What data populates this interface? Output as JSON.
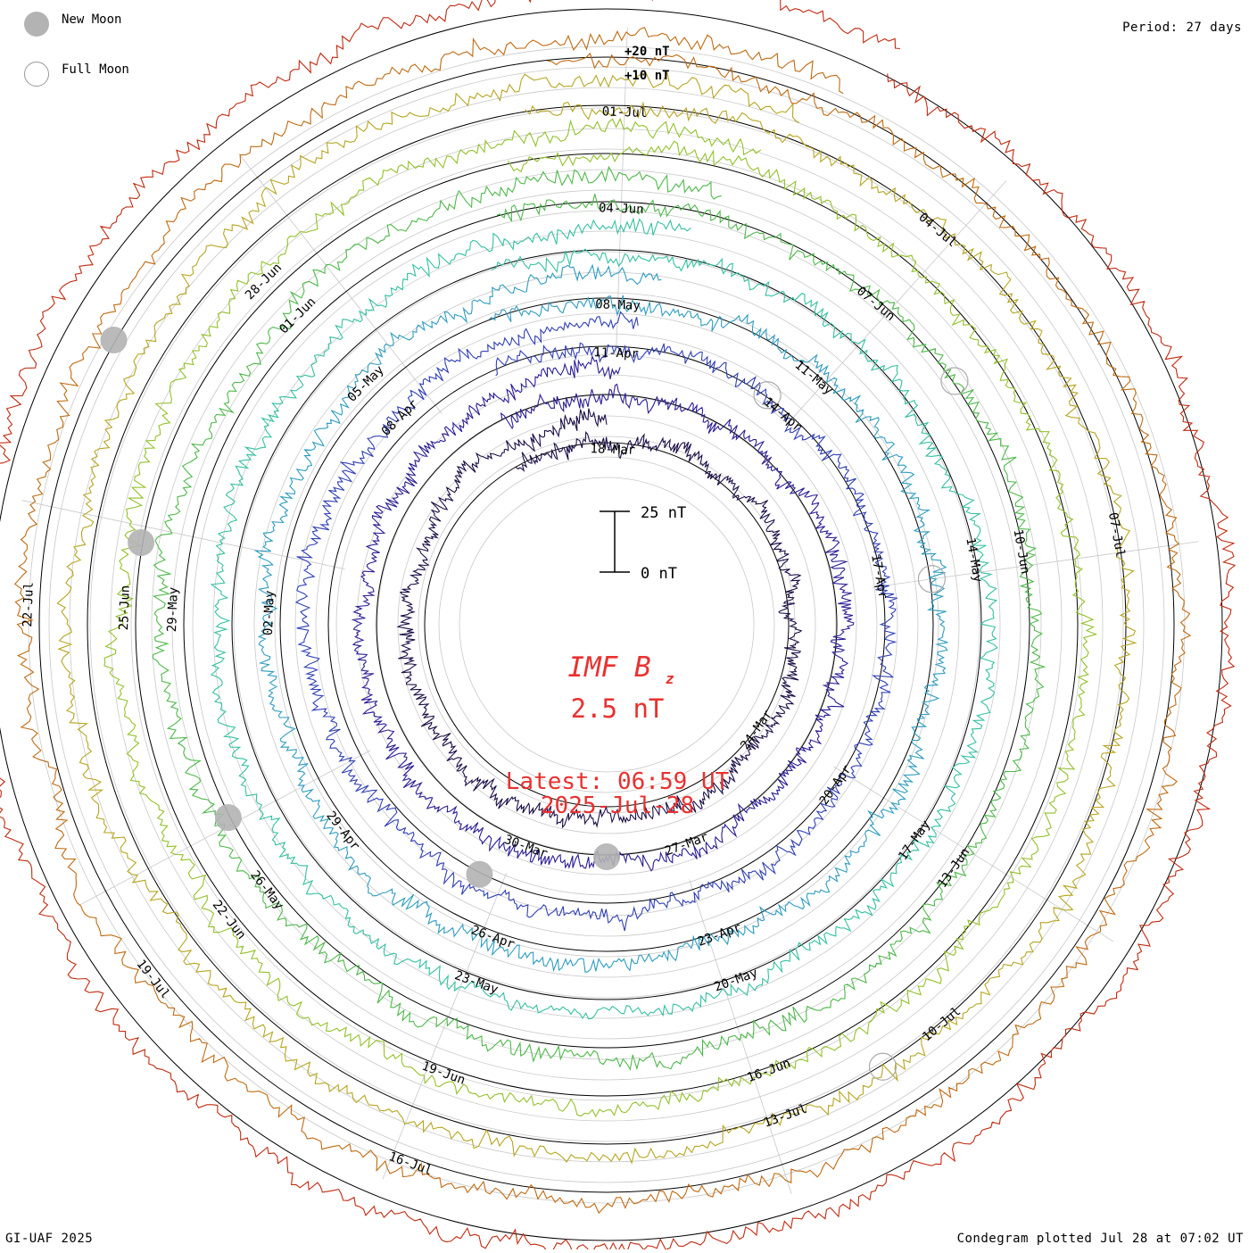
{
  "legend": {
    "new_moon": "New Moon",
    "full_moon": "Full Moon"
  },
  "period_label": "Period: 27 days",
  "footer_left": "GI-UAF 2025",
  "footer_right": "Condegram plotted Jul 28 at 07:02 UT",
  "colors": {
    "text_red": "#e8312f",
    "grid": "#c8c8c8",
    "moon_gray": "#b3b3b3",
    "tracks": [
      "#1c0e46",
      "#2b1d95",
      "#3040b5",
      "#2e9cc0",
      "#34c0a2",
      "#4eb84a",
      "#93c12a",
      "#b7a520",
      "#c06a10",
      "#c12a10"
    ]
  },
  "center": {
    "title_main": "IMF B",
    "title_sub": "z",
    "value": "2.5 nT",
    "latest": "Latest: 06:59 UT",
    "date": "2025-Jul-28"
  },
  "chart_data": {
    "type": "condegram",
    "title": "IMF Bz",
    "period_days": 27,
    "units": "nT",
    "latest_value_nT": 2.5,
    "latest_time": "06:59 UT",
    "latest_date": "2025-Jul-28",
    "scale_bar": {
      "top_label": "25 nT",
      "bottom_label": "0 nT",
      "top_value": 25,
      "bottom_value": 0
    },
    "reference_ring_labels": [
      "+20 nT",
      "+10 nT"
    ],
    "rotations": [
      {
        "index": 0,
        "color": "#1c0e46",
        "date_labels": [
          "18-Mar",
          "24-Mar",
          "27-Mar",
          "30-Mar"
        ]
      },
      {
        "index": 1,
        "color": "#2b1d95",
        "date_labels": [
          "11-Apr",
          "14-Apr",
          "17-Apr",
          "20-Apr",
          "23-Apr",
          "26-Apr"
        ]
      },
      {
        "index": 2,
        "color": "#3040b5",
        "date_labels": [
          "08-May",
          "11-May",
          "14-May",
          "17-May",
          "20-May",
          "23-May"
        ]
      },
      {
        "index": 3,
        "color": "#2e9cc0",
        "date_labels": [
          "02-May",
          "05-May",
          "29-Apr"
        ]
      },
      {
        "index": 4,
        "color": "#34c0a2",
        "date_labels": [
          "04-Jun",
          "07-Jun",
          "10-Jun",
          "13-Jun",
          "16-Jun",
          "19-Jun"
        ]
      },
      {
        "index": 5,
        "color": "#4eb84a",
        "date_labels": [
          "29-May",
          "01-Jun",
          "26-May"
        ]
      },
      {
        "index": 6,
        "color": "#93c12a",
        "date_labels": [
          "22-Jun",
          "25-Jun",
          "28-Jun"
        ]
      },
      {
        "index": 7,
        "color": "#b7a520",
        "date_labels": [
          "01-Jul",
          "04-Jul",
          "07-Jul",
          "10-Jul",
          "13-Jul",
          "16-Jul"
        ]
      },
      {
        "index": 8,
        "color": "#c06a10",
        "date_labels": [
          "19-Jul",
          "22-Jul"
        ]
      },
      {
        "index": 9,
        "color": "#c12a10",
        "date_labels": []
      }
    ],
    "date_labels": [
      {
        "text": "01-Jul",
        "ring": 7,
        "angle": 2
      },
      {
        "text": "04-Jul",
        "ring": 7,
        "angle": 40
      },
      {
        "text": "07-Jul",
        "ring": 7,
        "angle": 80
      },
      {
        "text": "10-Jul",
        "ring": 7,
        "angle": 140
      },
      {
        "text": "13-Jul",
        "ring": 7,
        "angle": 160
      },
      {
        "text": "16-Jul",
        "ring": 8,
        "angle": 200
      },
      {
        "text": "19-Jul",
        "ring": 8,
        "angle": 232
      },
      {
        "text": "22-Jul",
        "ring": 8,
        "angle": 272
      },
      {
        "text": "28-Jun",
        "ring": 6,
        "angle": 315
      },
      {
        "text": "04-Jun",
        "ring": 5,
        "angle": 2
      },
      {
        "text": "07-Jun",
        "ring": 5,
        "angle": 40
      },
      {
        "text": "10-Jun",
        "ring": 5,
        "angle": 80
      },
      {
        "text": "13-Jun",
        "ring": 5,
        "angle": 125
      },
      {
        "text": "16-Jun",
        "ring": 6,
        "angle": 160
      },
      {
        "text": "19-Jun",
        "ring": 6,
        "angle": 200
      },
      {
        "text": "22-Jun",
        "ring": 6,
        "angle": 232
      },
      {
        "text": "25-Jun",
        "ring": 6,
        "angle": 272
      },
      {
        "text": "01-Jun",
        "ring": 5,
        "angle": 315
      },
      {
        "text": "08-May",
        "ring": 3,
        "angle": 2
      },
      {
        "text": "11-May",
        "ring": 3,
        "angle": 40
      },
      {
        "text": "14-May",
        "ring": 4,
        "angle": 80
      },
      {
        "text": "17-May",
        "ring": 4,
        "angle": 125
      },
      {
        "text": "20-May",
        "ring": 4,
        "angle": 160
      },
      {
        "text": "23-May",
        "ring": 4,
        "angle": 200
      },
      {
        "text": "26-May",
        "ring": 5,
        "angle": 232
      },
      {
        "text": "29-May",
        "ring": 5,
        "angle": 272
      },
      {
        "text": "05-May",
        "ring": 3,
        "angle": 315
      },
      {
        "text": "11-Apr",
        "ring": 2,
        "angle": 2
      },
      {
        "text": "14-Apr",
        "ring": 2,
        "angle": 40
      },
      {
        "text": "17-Apr",
        "ring": 2,
        "angle": 80
      },
      {
        "text": "20-Apr",
        "ring": 2,
        "angle": 125
      },
      {
        "text": "23-Apr",
        "ring": 3,
        "angle": 160
      },
      {
        "text": "26-Apr",
        "ring": 3,
        "angle": 200
      },
      {
        "text": "29-Apr",
        "ring": 3,
        "angle": 232
      },
      {
        "text": "02-May",
        "ring": 3,
        "angle": 272
      },
      {
        "text": "08-Apr",
        "ring": 2,
        "angle": 315
      },
      {
        "text": "18-Mar",
        "ring": 0,
        "angle": 2
      },
      {
        "text": "24-Mar",
        "ring": 0,
        "angle": 125
      },
      {
        "text": "27-Mar",
        "ring": 1,
        "angle": 160
      },
      {
        "text": "30-Mar",
        "ring": 1,
        "angle": 200
      }
    ],
    "new_moons": [
      {
        "ring": 8,
        "angle": 300
      },
      {
        "ring": 6,
        "angle": 280
      },
      {
        "ring": 5,
        "angle": 243
      },
      {
        "ring": 2,
        "angle": 207
      },
      {
        "ring": 1,
        "angle": 180
      }
    ],
    "full_moons": [
      {
        "ring": 7,
        "angle": 148
      },
      {
        "ring": 5,
        "angle": 55
      },
      {
        "ring": 3,
        "angle": 82
      },
      {
        "ring": 2,
        "angle": 35
      }
    ]
  }
}
